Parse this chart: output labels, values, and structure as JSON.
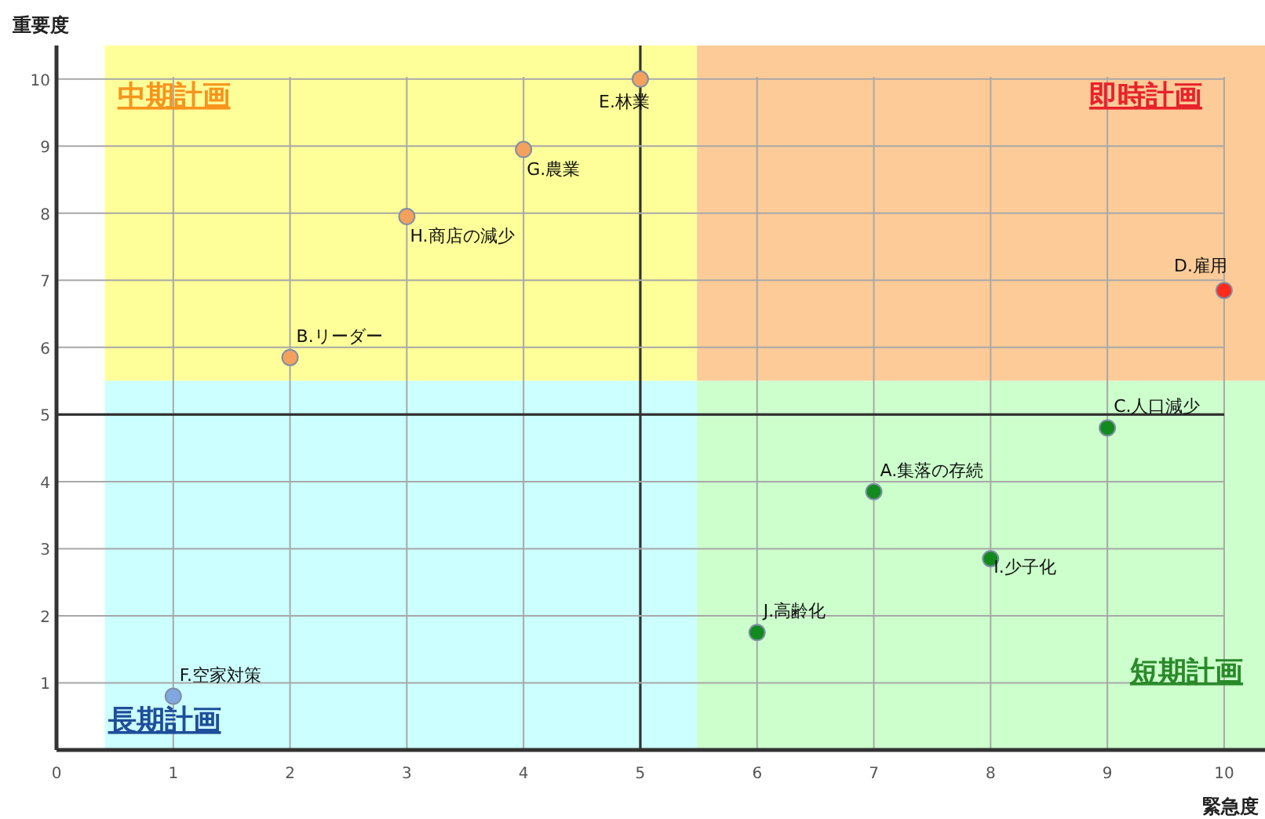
{
  "chart_data": {
    "type": "scatter",
    "xlabel": "緊急度",
    "ylabel": "重要度",
    "x": [
      7,
      2,
      9,
      10,
      5,
      1,
      4,
      3,
      8,
      6
    ],
    "values": [
      3.85,
      5.85,
      4.8,
      6.85,
      10,
      0.8,
      8.95,
      7.95,
      2.85,
      1.75
    ],
    "colors": [
      "#128a1e",
      "#f4a15d",
      "#128a1e",
      "#ff2a1a",
      "#f4a15d",
      "#7fa7e0",
      "#f4a15d",
      "#f4a15d",
      "#128a1e",
      "#128a1e"
    ],
    "xlim": [
      0,
      10.35
    ],
    "ylim": [
      0,
      10.5
    ],
    "xticks": [
      0,
      1,
      2,
      3,
      4,
      5,
      6,
      7,
      8,
      9,
      10
    ],
    "yticks": [
      1,
      2,
      3,
      4,
      5,
      6,
      7,
      8,
      9,
      10
    ],
    "grid": true,
    "marker": "circle",
    "annotations": [
      {
        "text": "A.集落の存続",
        "x": 7,
        "y": 3.85
      },
      {
        "text": "B.リーダー",
        "x": 2,
        "y": 5.85
      },
      {
        "text": "C.人口減少",
        "x": 9,
        "y": 4.8
      },
      {
        "text": "D.雇用",
        "x": 10,
        "y": 6.85
      },
      {
        "text": "E.林業",
        "x": 5,
        "y": 10
      },
      {
        "text": "F.空家対策",
        "x": 1,
        "y": 0.8
      },
      {
        "text": "G.農業",
        "x": 4,
        "y": 8.95
      },
      {
        "text": "H.商店の減少",
        "x": 3,
        "y": 7.95
      },
      {
        "text": "I.少子化",
        "x": 8,
        "y": 2.85
      },
      {
        "text": "J.高齢化",
        "x": 6,
        "y": 1.75
      },
      "中期計画",
      "即時計画",
      "長期計画",
      "短期計画"
    ]
  }
}
